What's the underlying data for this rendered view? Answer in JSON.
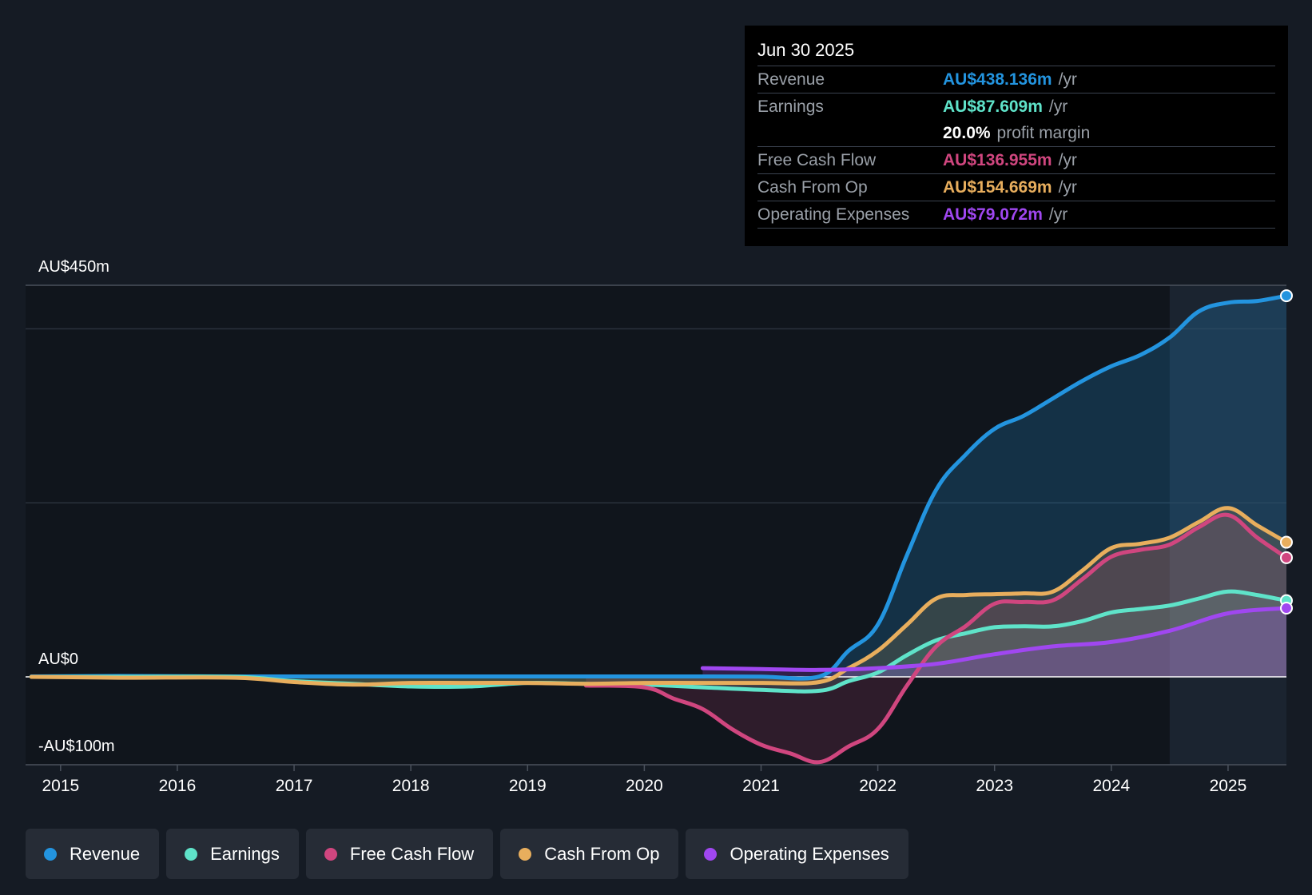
{
  "chart_data": {
    "type": "area",
    "currency_unit": "AU$m",
    "y_labels": {
      "top": "AU$450m",
      "zero": "AU$0",
      "bottom": "-AU$100m"
    },
    "ylim": [
      -100,
      450
    ],
    "x_ticks": [
      "2015",
      "2016",
      "2017",
      "2018",
      "2019",
      "2020",
      "2021",
      "2022",
      "2023",
      "2024",
      "2025"
    ],
    "x_range": [
      2014.7,
      2025.5
    ],
    "forecast_shade_start": 2024.5,
    "series": [
      {
        "key": "revenue",
        "name": "Revenue",
        "color": "#2394df",
        "x": [
          2014.75,
          2015.5,
          2016.5,
          2017.5,
          2018.5,
          2019.5,
          2020.5,
          2021.0,
          2021.5,
          2021.75,
          2022.0,
          2022.25,
          2022.5,
          2022.75,
          2023.0,
          2023.25,
          2023.5,
          2023.75,
          2024.0,
          2024.25,
          2024.5,
          2024.75,
          2025.0,
          2025.25,
          2025.5
        ],
        "y": [
          0.5,
          1,
          0.5,
          0.5,
          0.5,
          0.5,
          0.5,
          0.3,
          0.5,
          30,
          60,
          140,
          215,
          255,
          285,
          300,
          320,
          340,
          357,
          370,
          390,
          420,
          430,
          432,
          438
        ]
      },
      {
        "key": "earnings",
        "name": "Earnings",
        "color": "#5fe3c9",
        "x": [
          2014.75,
          2015.5,
          2016.5,
          2017.0,
          2017.5,
          2018.0,
          2018.5,
          2019.0,
          2019.5,
          2020.0,
          2020.5,
          2021.0,
          2021.5,
          2021.75,
          2022.0,
          2022.25,
          2022.5,
          2022.75,
          2023.0,
          2023.25,
          2023.5,
          2023.75,
          2024.0,
          2024.25,
          2024.5,
          2024.75,
          2025.0,
          2025.25,
          2025.5
        ],
        "y": [
          0,
          0,
          0,
          -5,
          -8,
          -11,
          -11,
          -7,
          -8,
          -9,
          -12,
          -15,
          -16,
          -5,
          5,
          25,
          42,
          50,
          57,
          58,
          58,
          64,
          74,
          78,
          82,
          90,
          98,
          94,
          87.6
        ]
      },
      {
        "key": "fcf",
        "name": "Free Cash Flow",
        "color": "#d0467f",
        "x": [
          2019.5,
          2020.0,
          2020.25,
          2020.5,
          2020.75,
          2021.0,
          2021.25,
          2021.5,
          2021.75,
          2022.0,
          2022.25,
          2022.5,
          2022.75,
          2023.0,
          2023.25,
          2023.5,
          2023.75,
          2024.0,
          2024.25,
          2024.5,
          2024.75,
          2025.0,
          2025.25,
          2025.5
        ],
        "y": [
          -10,
          -12,
          -25,
          -37,
          -60,
          -78,
          -88,
          -98,
          -80,
          -60,
          -10,
          35,
          58,
          84,
          86,
          88,
          112,
          138,
          146,
          152,
          172,
          186,
          160,
          137
        ]
      },
      {
        "key": "cfo",
        "name": "Cash From Op",
        "color": "#e8ae5d",
        "x": [
          2014.75,
          2015.5,
          2016.5,
          2017.0,
          2017.5,
          2018.0,
          2018.5,
          2019.0,
          2019.5,
          2020.0,
          2020.5,
          2021.0,
          2021.5,
          2021.75,
          2022.0,
          2022.25,
          2022.5,
          2022.75,
          2023.0,
          2023.25,
          2023.5,
          2023.75,
          2024.0,
          2024.25,
          2024.5,
          2024.75,
          2025.0,
          2025.25,
          2025.5
        ],
        "y": [
          0,
          -1,
          -1,
          -6,
          -9,
          -7,
          -7,
          -7,
          -8,
          -7,
          -7,
          -7,
          -6,
          10,
          30,
          60,
          90,
          94,
          95,
          96,
          98,
          122,
          148,
          153,
          160,
          178,
          194,
          174,
          154.7
        ]
      },
      {
        "key": "opex",
        "name": "Operating Expenses",
        "color": "#a047f0",
        "x": [
          2020.5,
          2021.0,
          2021.5,
          2022.0,
          2022.5,
          2023.0,
          2023.5,
          2024.0,
          2024.5,
          2025.0,
          2025.5
        ],
        "y": [
          10,
          9,
          8,
          10,
          15,
          26,
          35,
          40,
          53,
          73,
          79
        ]
      }
    ]
  },
  "tooltip": {
    "date": "Jun 30 2025",
    "rows": [
      {
        "label": "Revenue",
        "value": "AU$438.136m",
        "unit": "/yr",
        "color": "#2394df"
      },
      {
        "label": "Earnings",
        "value": "AU$87.609m",
        "unit": "/yr",
        "color": "#5fe3c9"
      },
      {
        "label": "",
        "value": "20.0%",
        "unit": "profit margin",
        "color": "#ffffff"
      },
      {
        "label": "Free Cash Flow",
        "value": "AU$136.955m",
        "unit": "/yr",
        "color": "#d0467f"
      },
      {
        "label": "Cash From Op",
        "value": "AU$154.669m",
        "unit": "/yr",
        "color": "#e8ae5d"
      },
      {
        "label": "Operating Expenses",
        "value": "AU$79.072m",
        "unit": "/yr",
        "color": "#a047f0"
      }
    ]
  },
  "legend": [
    {
      "label": "Revenue",
      "color": "#2394df"
    },
    {
      "label": "Earnings",
      "color": "#5fe3c9"
    },
    {
      "label": "Free Cash Flow",
      "color": "#d0467f"
    },
    {
      "label": "Cash From Op",
      "color": "#e8ae5d"
    },
    {
      "label": "Operating Expenses",
      "color": "#a047f0"
    }
  ]
}
